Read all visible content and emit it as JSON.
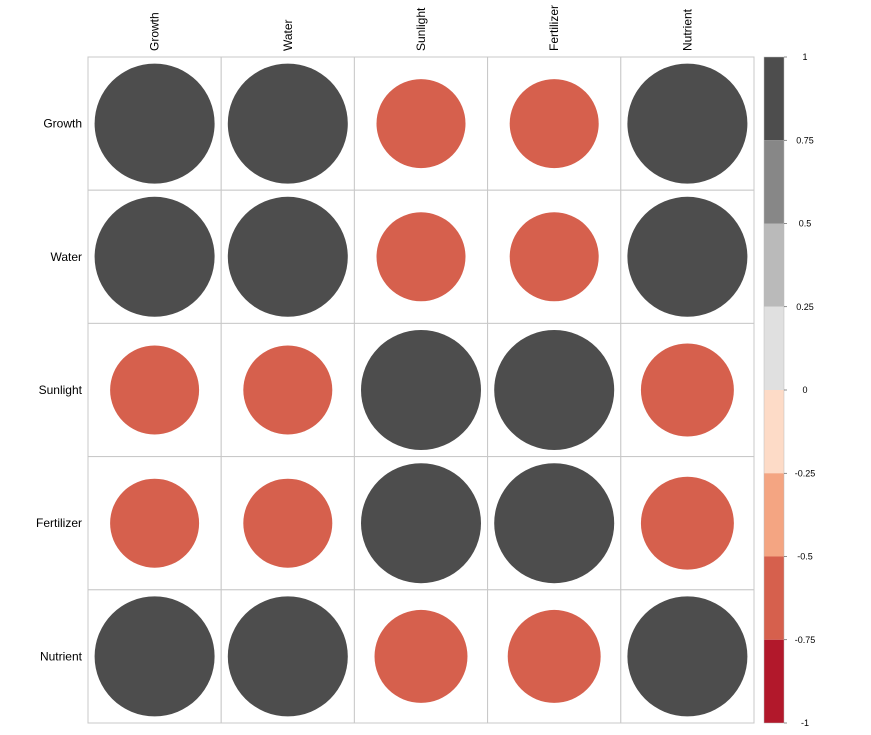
{
  "chart_data": {
    "type": "heatmap",
    "subtype": "correlation-circle-matrix",
    "variables": [
      "Growth",
      "Water",
      "Sunlight",
      "Fertilizer",
      "Nutrient"
    ],
    "matrix": [
      [
        1.0,
        1.0,
        -0.55,
        -0.55,
        1.0
      ],
      [
        1.0,
        1.0,
        -0.55,
        -0.55,
        1.0
      ],
      [
        -0.55,
        -0.55,
        1.0,
        1.0,
        -0.6
      ],
      [
        -0.55,
        -0.55,
        1.0,
        1.0,
        -0.6
      ],
      [
        1.0,
        1.0,
        -0.6,
        -0.6,
        1.0
      ]
    ],
    "colorbar": {
      "range": [
        -1,
        1
      ],
      "tick_labels": [
        "1",
        "0.75",
        "0.5",
        "0.25",
        "0",
        "-0.25",
        "-0.5",
        "-0.75",
        "-1"
      ],
      "bins": [
        {
          "from": 0.75,
          "to": 1.0,
          "color": "#4d4d4d"
        },
        {
          "from": 0.5,
          "to": 0.75,
          "color": "#878787"
        },
        {
          "from": 0.25,
          "to": 0.5,
          "color": "#bababa"
        },
        {
          "from": 0.0,
          "to": 0.25,
          "color": "#e0e0e0"
        },
        {
          "from": -0.25,
          "to": 0.0,
          "color": "#fddbc7"
        },
        {
          "from": -0.5,
          "to": -0.25,
          "color": "#f4a582"
        },
        {
          "from": -0.75,
          "to": -0.5,
          "color": "#d6604d"
        },
        {
          "from": -1.0,
          "to": -0.75,
          "color": "#b2182b"
        }
      ]
    },
    "grid": true,
    "legend": "right"
  }
}
